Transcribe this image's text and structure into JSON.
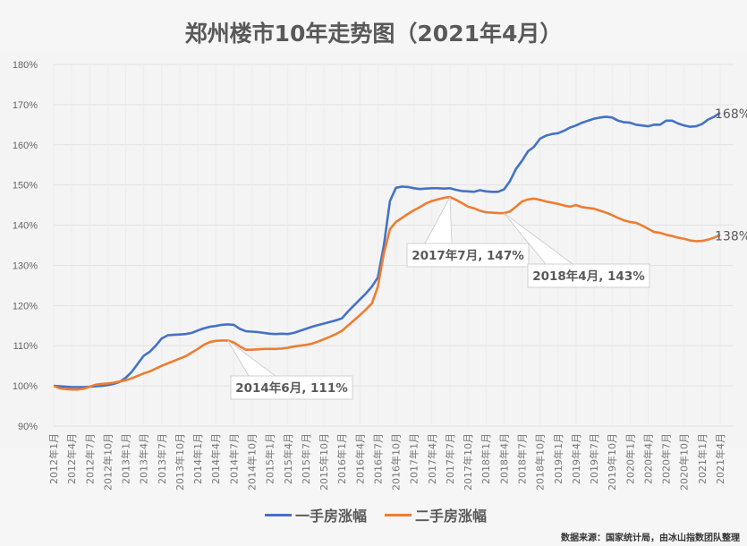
{
  "chart_data": {
    "type": "line",
    "title": "郑州楼市10年走势图（2021年4月）",
    "xlabel": "",
    "ylabel": "",
    "ylim": [
      90,
      180
    ],
    "y_ticks": [
      "90%",
      "100%",
      "110%",
      "120%",
      "130%",
      "140%",
      "150%",
      "160%",
      "170%",
      "180%"
    ],
    "y_tick_values": [
      90,
      100,
      110,
      120,
      130,
      140,
      150,
      160,
      170,
      180
    ],
    "grid": "horizontal",
    "legend": "bottom",
    "x": [
      "2012年1月",
      "2012年2月",
      "2012年3月",
      "2012年4月",
      "2012年5月",
      "2012年6月",
      "2012年7月",
      "2012年8月",
      "2012年9月",
      "2012年10月",
      "2012年11月",
      "2012年12月",
      "2013年1月",
      "2013年2月",
      "2013年3月",
      "2013年4月",
      "2013年5月",
      "2013年6月",
      "2013年7月",
      "2013年8月",
      "2013年9月",
      "2013年10月",
      "2013年11月",
      "2013年12月",
      "2014年1月",
      "2014年2月",
      "2014年3月",
      "2014年4月",
      "2014年5月",
      "2014年6月",
      "2014年7月",
      "2014年8月",
      "2014年9月",
      "2014年10月",
      "2014年11月",
      "2014年12月",
      "2015年1月",
      "2015年2月",
      "2015年3月",
      "2015年4月",
      "2015年5月",
      "2015年6月",
      "2015年7月",
      "2015年8月",
      "2015年9月",
      "2015年10月",
      "2015年11月",
      "2015年12月",
      "2016年1月",
      "2016年2月",
      "2016年3月",
      "2016年4月",
      "2016年5月",
      "2016年6月",
      "2016年7月",
      "2016年8月",
      "2016年9月",
      "2016年10月",
      "2016年11月",
      "2016年12月",
      "2017年1月",
      "2017年2月",
      "2017年3月",
      "2017年4月",
      "2017年5月",
      "2017年6月",
      "2017年7月",
      "2017年8月",
      "2017年9月",
      "2017年10月",
      "2017年11月",
      "2017年12月",
      "2018年1月",
      "2018年2月",
      "2018年3月",
      "2018年4月",
      "2018年5月",
      "2018年6月",
      "2018年7月",
      "2018年8月",
      "2018年9月",
      "2018年10月",
      "2018年11月",
      "2018年12月",
      "2019年1月",
      "2019年2月",
      "2019年3月",
      "2019年4月",
      "2019年5月",
      "2019年6月",
      "2019年7月",
      "2019年8月",
      "2019年9月",
      "2019年10月",
      "2019年11月",
      "2019年12月",
      "2020年1月",
      "2020年2月",
      "2020年3月",
      "2020年4月",
      "2020年5月",
      "2020年6月",
      "2020年7月",
      "2020年8月",
      "2020年9月",
      "2020年10月",
      "2020年11月",
      "2020年12月",
      "2021年1月",
      "2021年2月",
      "2021年3月",
      "2021年4月"
    ],
    "x_tick_every": 3,
    "series": [
      {
        "name": "一手房涨幅",
        "color": "#4472C4",
        "end_label": "168%",
        "values": [
          100.0,
          99.9,
          99.8,
          99.7,
          99.7,
          99.7,
          99.8,
          99.9,
          100.0,
          100.2,
          100.5,
          101.0,
          102.0,
          103.5,
          105.5,
          107.5,
          108.5,
          110.0,
          111.8,
          112.6,
          112.7,
          112.8,
          112.9,
          113.2,
          113.8,
          114.3,
          114.7,
          114.9,
          115.2,
          115.3,
          115.2,
          114.2,
          113.6,
          113.5,
          113.4,
          113.2,
          113.0,
          112.9,
          113.0,
          112.9,
          113.2,
          113.7,
          114.2,
          114.7,
          115.1,
          115.5,
          115.9,
          116.3,
          116.8,
          118.5,
          120.0,
          121.5,
          123.0,
          124.7,
          127.0,
          135.0,
          146.0,
          149.3,
          149.6,
          149.5,
          149.2,
          149.0,
          149.1,
          149.2,
          149.2,
          149.1,
          149.2,
          148.8,
          148.5,
          148.4,
          148.3,
          148.7,
          148.4,
          148.3,
          148.3,
          148.9,
          151.0,
          154.0,
          156.0,
          158.4,
          159.5,
          161.5,
          162.3,
          162.7,
          162.9,
          163.5,
          164.3,
          164.8,
          165.5,
          166.0,
          166.5,
          166.8,
          167.0,
          166.8,
          166.0,
          165.6,
          165.5,
          165.0,
          164.8,
          164.6,
          165.0,
          165.0,
          166.0,
          166.0,
          165.3,
          164.8,
          164.5,
          164.6,
          165.2,
          166.3,
          167.0,
          168.0
        ]
      },
      {
        "name": "二手房涨幅",
        "color": "#ED7D31",
        "end_label": "138%",
        "values": [
          100.0,
          99.4,
          99.2,
          99.1,
          99.1,
          99.3,
          99.8,
          100.3,
          100.5,
          100.6,
          100.8,
          101.1,
          101.4,
          101.9,
          102.5,
          103.1,
          103.6,
          104.3,
          105.0,
          105.6,
          106.2,
          106.8,
          107.4,
          108.3,
          109.2,
          110.2,
          110.9,
          111.2,
          111.3,
          111.3,
          110.8,
          109.8,
          109.0,
          109.0,
          109.1,
          109.2,
          109.2,
          109.2,
          109.3,
          109.5,
          109.8,
          110.0,
          110.2,
          110.5,
          111.0,
          111.6,
          112.2,
          112.9,
          113.7,
          115.0,
          116.3,
          117.6,
          119.0,
          120.5,
          124.7,
          133.0,
          139.0,
          140.8,
          141.8,
          142.8,
          143.7,
          144.5,
          145.4,
          146.0,
          146.4,
          146.8,
          147.0,
          146.3,
          145.5,
          144.6,
          144.2,
          143.6,
          143.2,
          143.1,
          143.0,
          143.0,
          143.4,
          144.6,
          145.9,
          146.4,
          146.6,
          146.3,
          145.9,
          145.6,
          145.3,
          144.9,
          144.6,
          145.0,
          144.5,
          144.3,
          144.1,
          143.6,
          143.1,
          142.5,
          141.8,
          141.2,
          140.8,
          140.6,
          139.9,
          139.1,
          138.3,
          138.1,
          137.6,
          137.3,
          136.9,
          136.6,
          136.2,
          136.0,
          136.1,
          136.4,
          136.9,
          137.6
        ]
      }
    ],
    "annotations": [
      {
        "series": 1,
        "x": "2014年6月",
        "label": "2014年6月, 111%"
      },
      {
        "series": 1,
        "x": "2017年7月",
        "label": "2017年7月, 147%"
      },
      {
        "series": 1,
        "x": "2018年4月",
        "label": "2018年4月, 143%"
      }
    ]
  },
  "legend": {
    "items": [
      {
        "label": "一手房涨幅",
        "color": "#4472C4"
      },
      {
        "label": "二手房涨幅",
        "color": "#ED7D31"
      }
    ]
  },
  "source": "数据来源：国家统计局，由冰山指数团队整理"
}
